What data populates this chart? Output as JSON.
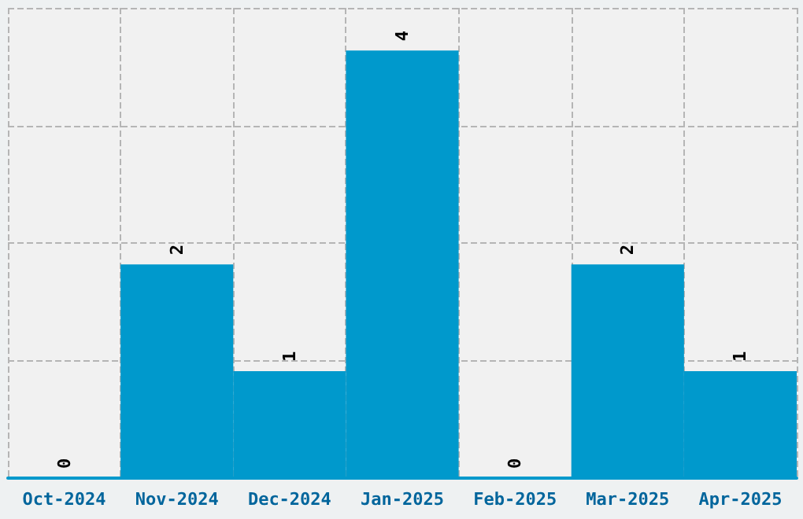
{
  "chart_data": {
    "type": "bar",
    "categories": [
      "Oct-2024",
      "Nov-2024",
      "Dec-2024",
      "Jan-2025",
      "Feb-2025",
      "Mar-2025",
      "Apr-2025"
    ],
    "values": [
      0,
      2,
      1,
      4,
      0,
      2,
      1
    ],
    "color": "#0099cc",
    "ylim": [
      0,
      4.4
    ],
    "yticks": [
      {
        "value": 0,
        "label": null
      },
      {
        "value": 1.1,
        "label": null
      },
      {
        "value": 2.2,
        "label": null
      },
      {
        "value": 3.3,
        "label": null
      },
      {
        "value": 4.4,
        "label": null
      }
    ],
    "grid": true,
    "tick_labels": "x",
    "data_labels": true
  }
}
